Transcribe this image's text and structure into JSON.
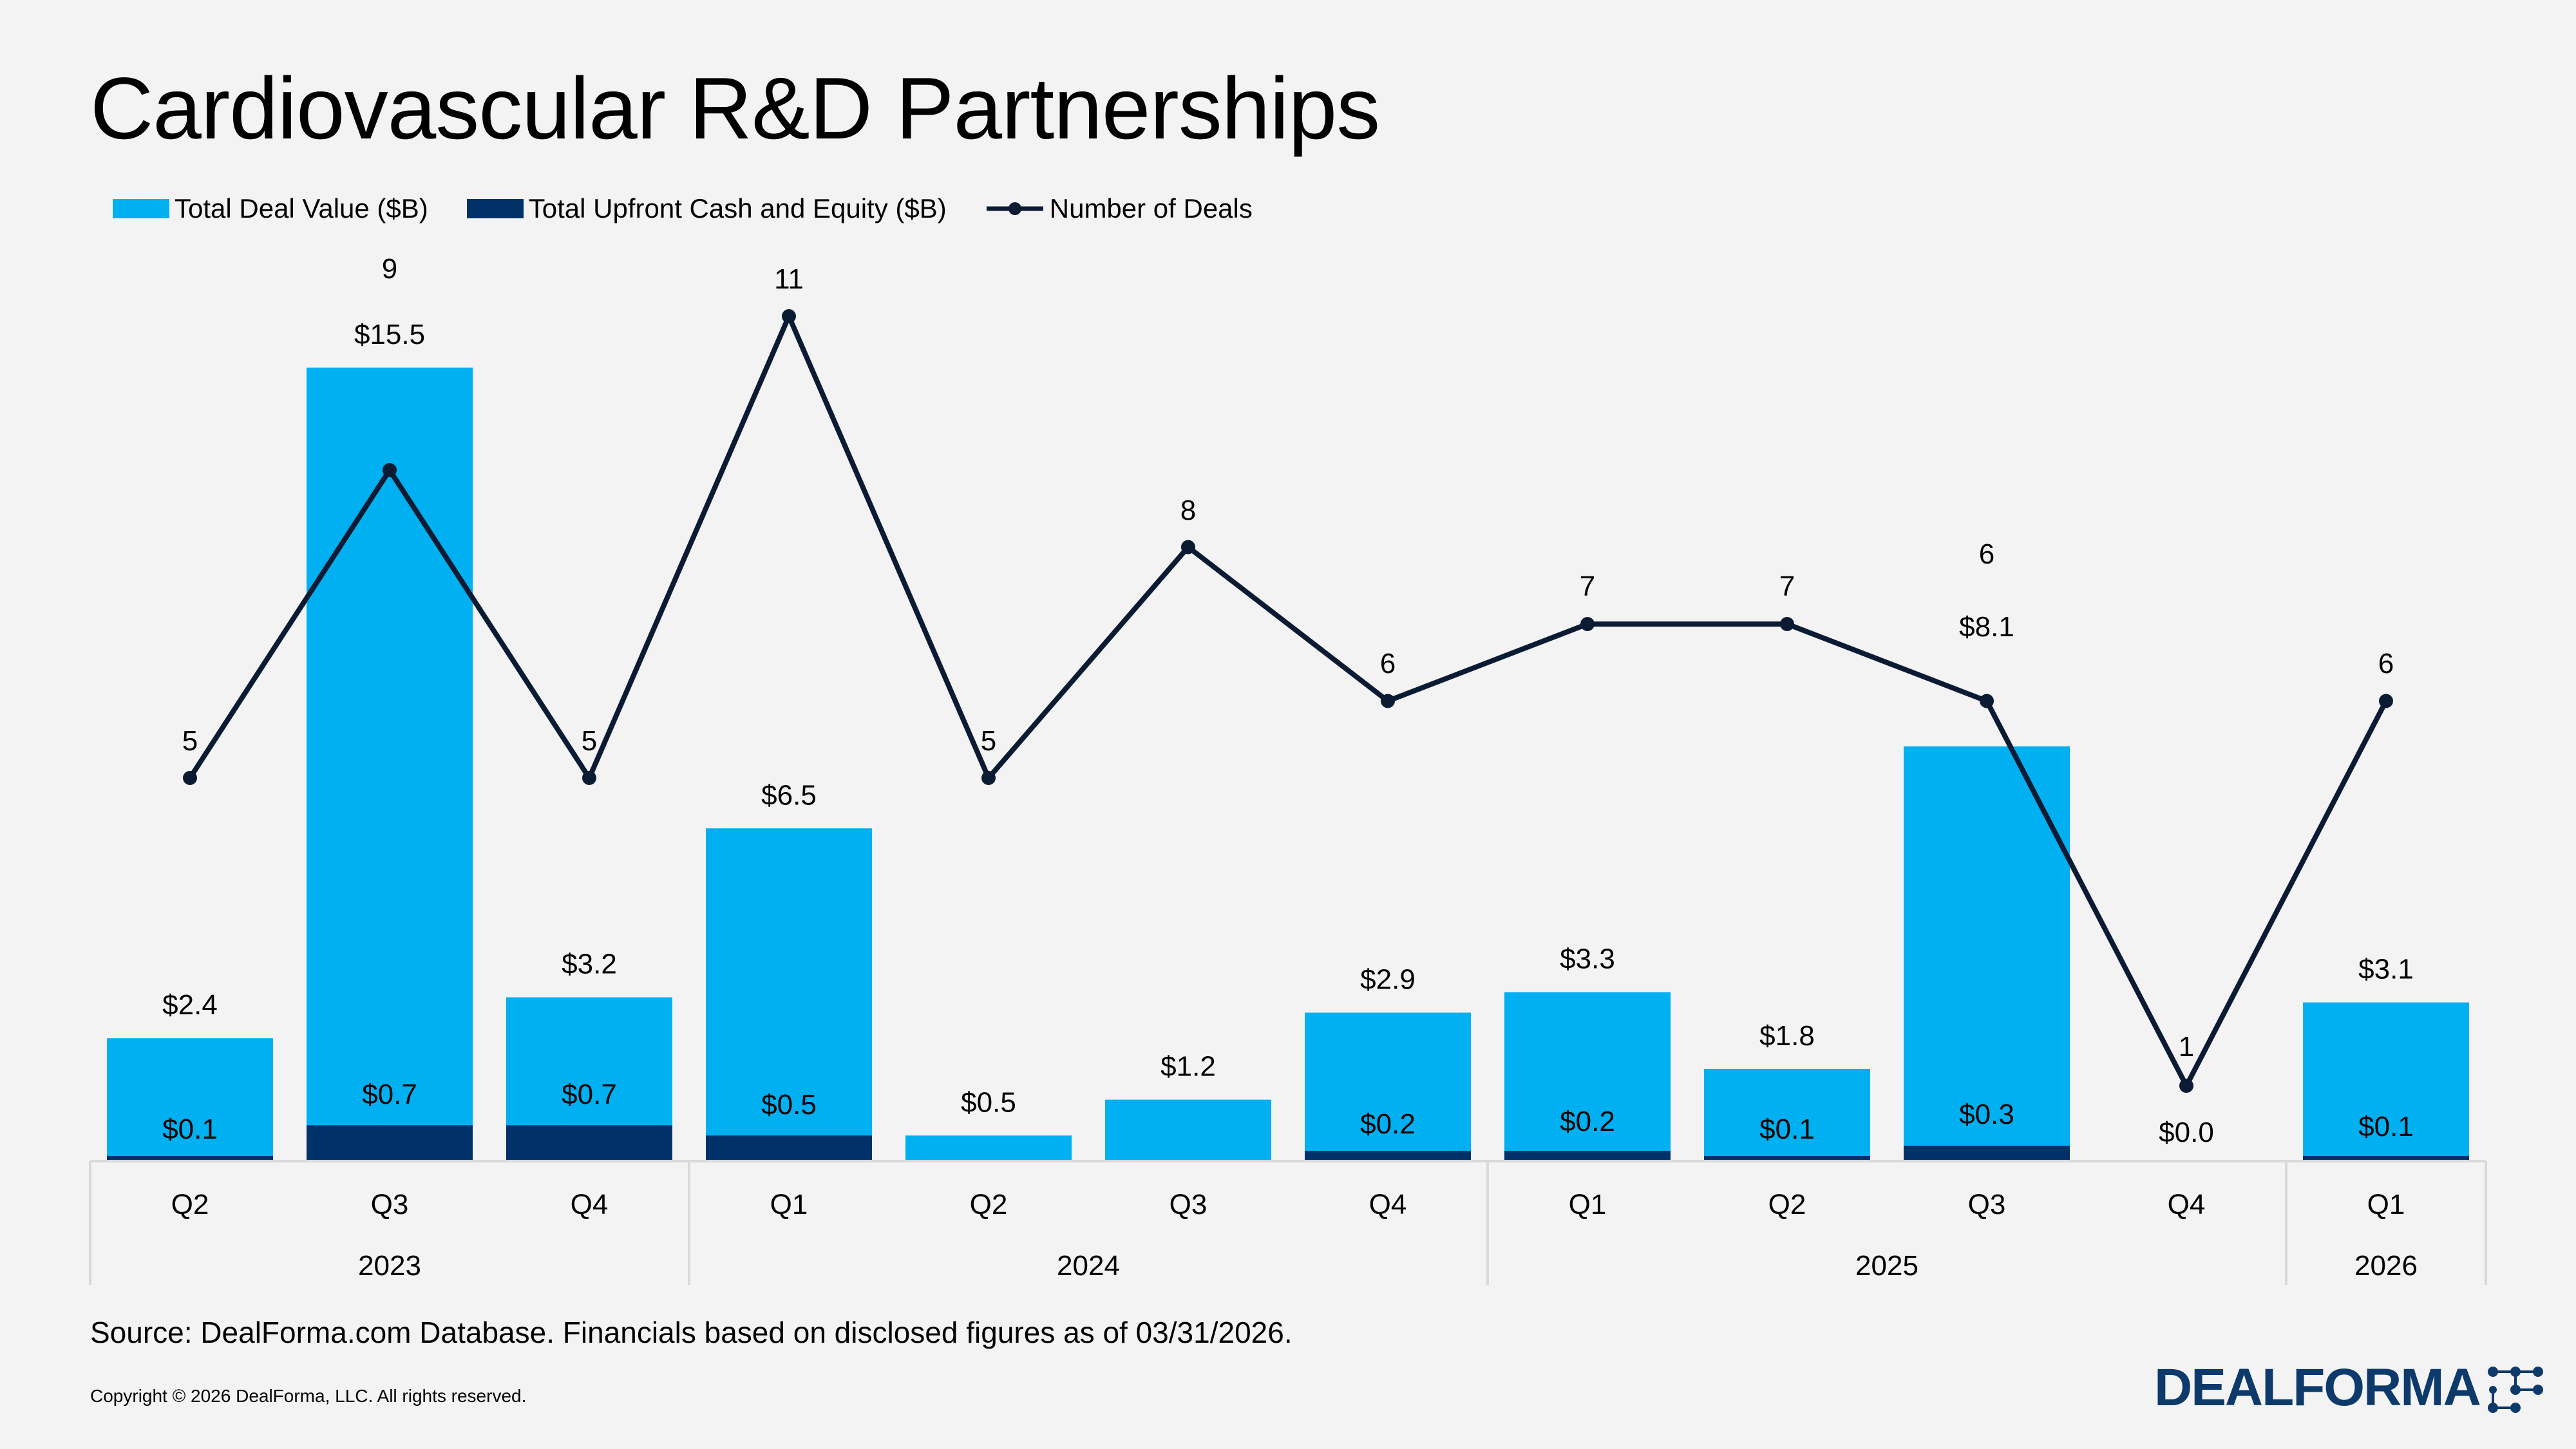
{
  "title": "Cardiovascular R&D Partnerships",
  "legend": {
    "total_deal_value": "Total Deal Value ($B)",
    "upfront": "Total Upfront Cash and Equity ($B)",
    "num_deals": "Number of Deals"
  },
  "colors": {
    "total_deal_value": "#00b0f0",
    "upfront": "#003168",
    "line": "#0b1b34",
    "background": "#f3f3f3",
    "axis": "#d9d9d9",
    "logo": "#0d3a6b"
  },
  "chart_data": {
    "type": "bar",
    "title": "Cardiovascular R&D Partnerships",
    "categories": [
      "Q2",
      "Q3",
      "Q4",
      "Q1",
      "Q2",
      "Q3",
      "Q4",
      "Q1",
      "Q2",
      "Q3",
      "Q4",
      "Q1"
    ],
    "year_groups": [
      {
        "label": "2023",
        "count": 3
      },
      {
        "label": "2024",
        "count": 4
      },
      {
        "label": "2025",
        "count": 4
      },
      {
        "label": "2026",
        "count": 1
      }
    ],
    "series": [
      {
        "name": "Total Deal Value ($B)",
        "type": "bar",
        "values": [
          2.4,
          15.5,
          3.2,
          6.5,
          0.5,
          1.2,
          2.9,
          3.3,
          1.8,
          8.1,
          0.0,
          3.1
        ],
        "labels": [
          "$2.4",
          "$15.5",
          "$3.2",
          "$6.5",
          "$0.5",
          "$1.2",
          "$2.9",
          "$3.3",
          "$1.8",
          "$8.1",
          "",
          "$3.1"
        ]
      },
      {
        "name": "Total Upfront Cash and Equity ($B)",
        "type": "bar",
        "values": [
          0.1,
          0.7,
          0.7,
          0.5,
          0.0,
          0.0,
          0.2,
          0.2,
          0.1,
          0.3,
          0.0,
          0.1
        ],
        "labels": [
          "$0.1",
          "$0.7",
          "$0.7",
          "$0.5",
          "",
          "",
          "$0.2",
          "$0.2",
          "$0.1",
          "$0.3",
          "$0.0",
          "$0.1"
        ]
      },
      {
        "name": "Number of Deals",
        "type": "line",
        "values": [
          5,
          9,
          5,
          11,
          5,
          8,
          6,
          7,
          7,
          6,
          1,
          6
        ],
        "labels": [
          "5",
          "9",
          "5",
          "11",
          "5",
          "8",
          "6",
          "7",
          "7",
          "6",
          "1",
          "6"
        ]
      }
    ],
    "legend_position": "top-left",
    "grid": false
  },
  "footer": {
    "source": "Source: DealForma.com Database. Financials based on disclosed figures as of 03/31/2026.",
    "copyright": "Copyright © 2026 DealForma, LLC. All rights reserved.",
    "logo_text": "DEALFORMA"
  }
}
